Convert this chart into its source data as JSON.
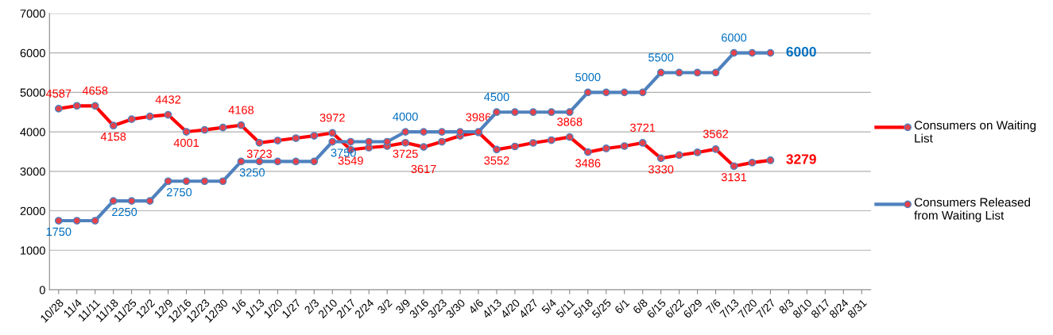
{
  "chart_data": {
    "type": "line",
    "categories": [
      "10/28",
      "11/4",
      "11/11",
      "11/18",
      "11/25",
      "12/2",
      "12/9",
      "12/16",
      "12/23",
      "12/30",
      "1/6",
      "1/13",
      "1/20",
      "1/27",
      "2/3",
      "2/10",
      "2/17",
      "2/24",
      "3/2",
      "3/9",
      "3/16",
      "3/23",
      "3/30",
      "4/6",
      "4/13",
      "4/20",
      "4/27",
      "5/4",
      "5/11",
      "5/18",
      "5/25",
      "6/1",
      "6/8",
      "6/15",
      "6/22",
      "6/29",
      "7/6",
      "7/13",
      "7/20",
      "7/27",
      "8/3",
      "8/10",
      "8/17",
      "8/24",
      "8/31"
    ],
    "series": [
      {
        "name": "Consumers on Waiting List",
        "color": "#ff0000",
        "values": [
          4587,
          4660,
          4658,
          4158,
          4320,
          4390,
          4432,
          4001,
          4050,
          4110,
          4168,
          3723,
          3780,
          3840,
          3900,
          3972,
          3549,
          3600,
          3640,
          3725,
          3617,
          3750,
          3900,
          3986,
          3552,
          3630,
          3720,
          3790,
          3868,
          3486,
          3580,
          3640,
          3721,
          3330,
          3410,
          3480,
          3562,
          3131,
          3220,
          3279,
          null,
          null,
          null,
          null,
          null
        ],
        "value_labels": [
          "4587",
          null,
          "4658",
          "4158",
          null,
          null,
          "4432",
          "4001",
          null,
          null,
          "4168",
          "3723",
          null,
          null,
          null,
          "3972",
          "3549",
          null,
          null,
          "3725",
          "3617",
          null,
          null,
          "3986",
          "3552",
          null,
          null,
          null,
          "3868",
          "3486",
          null,
          null,
          "3721",
          "3330",
          null,
          null,
          "3562",
          "3131",
          null,
          "3279",
          null,
          null,
          null,
          null,
          null
        ]
      },
      {
        "name": "Consumers Released from Waiting List",
        "color": "#4f81bd",
        "values": [
          1750,
          1750,
          1750,
          2250,
          2250,
          2250,
          2750,
          2750,
          2750,
          2750,
          3250,
          3250,
          3250,
          3250,
          3250,
          3750,
          3750,
          3750,
          3750,
          4000,
          4000,
          4000,
          4000,
          4000,
          4500,
          4500,
          4500,
          4500,
          4500,
          5000,
          5000,
          5000,
          5000,
          5500,
          5500,
          5500,
          5500,
          6000,
          6000,
          6000,
          null,
          null,
          null,
          null,
          null
        ],
        "value_labels": [
          "1750",
          null,
          null,
          "2250",
          null,
          null,
          "2750",
          null,
          null,
          null,
          "3250",
          null,
          null,
          null,
          null,
          "3750",
          null,
          null,
          null,
          "4000",
          null,
          null,
          null,
          null,
          "4500",
          null,
          null,
          null,
          null,
          "5000",
          null,
          null,
          null,
          "5500",
          null,
          null,
          null,
          "6000",
          null,
          "6000",
          null,
          null,
          null,
          null,
          null
        ]
      }
    ],
    "ylim": [
      0,
      7000
    ],
    "yticks": [
      0,
      1000,
      2000,
      3000,
      4000,
      5000,
      6000,
      7000
    ],
    "grid": "y",
    "legend": "right",
    "marker": "circle",
    "line_style": "solid"
  }
}
